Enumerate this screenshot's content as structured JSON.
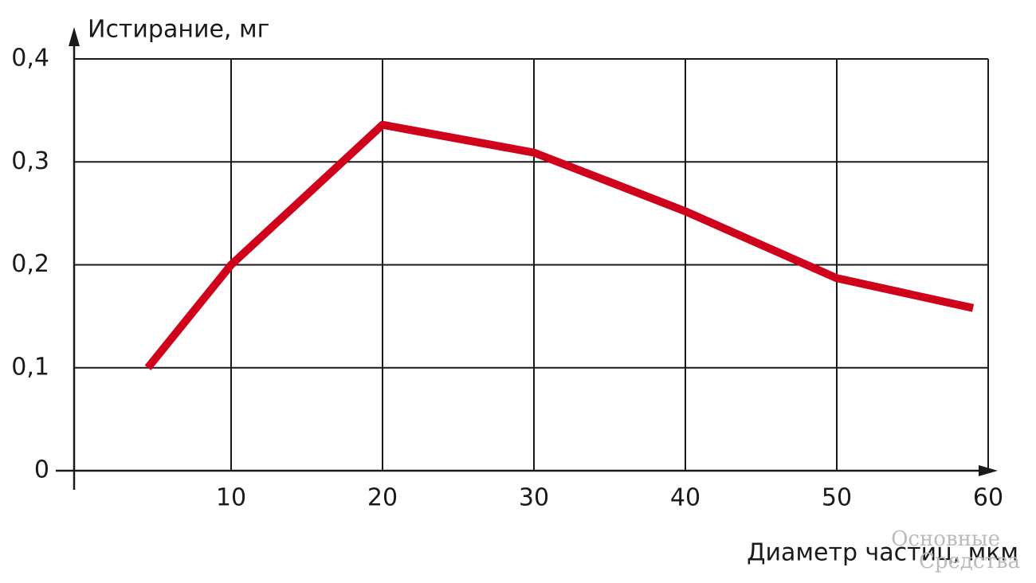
{
  "chart_data": {
    "type": "line",
    "y_label": "Истирание, мг",
    "x_label": "Диаметр частиц, мкм",
    "x": [
      4.5,
      10,
      20,
      30,
      40,
      50,
      59
    ],
    "values": [
      0.1,
      0.2,
      0.336,
      0.309,
      0.252,
      0.187,
      0.158
    ],
    "color": "#d0021b",
    "xlim": [
      0,
      60
    ],
    "xticks": [
      10,
      20,
      30,
      40,
      50,
      60
    ],
    "ylim": [
      0,
      0.4
    ],
    "yticks": [
      0,
      {
        "value": 0.1,
        "label": "0,1"
      },
      {
        "value": 0.2,
        "label": "0,2"
      },
      {
        "value": 0.3,
        "label": "0,3"
      },
      {
        "value": 0.4,
        "label": "0,4"
      }
    ],
    "grid": true,
    "watermark": [
      "Основные",
      "Средства"
    ]
  }
}
